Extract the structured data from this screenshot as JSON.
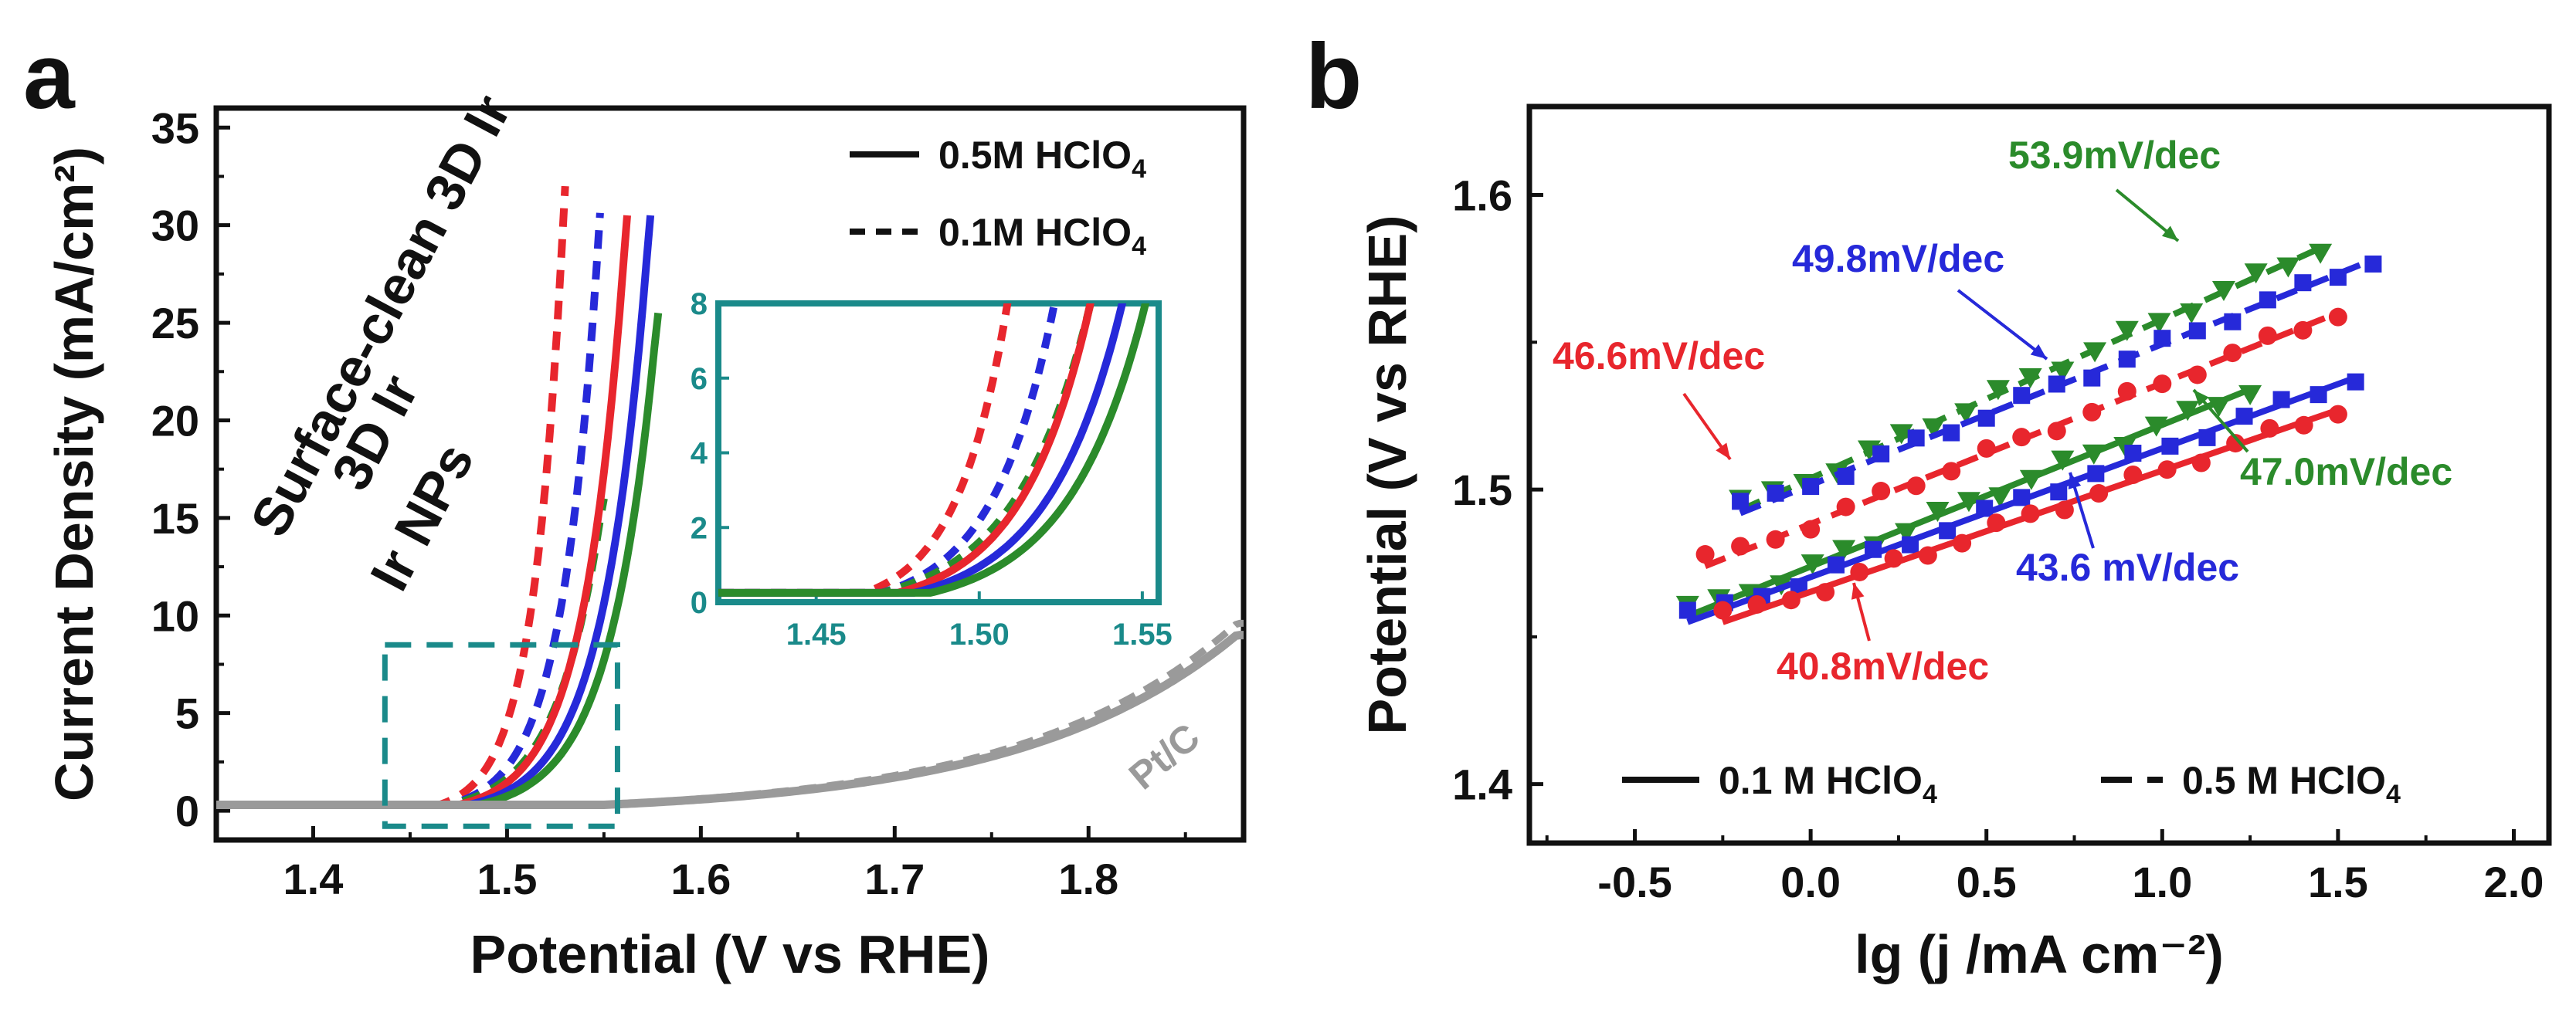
{
  "chart_data": [
    {
      "panel": "a",
      "type": "line",
      "title": "",
      "xlabel": "Potential (V vs RHE)",
      "ylabel": "Current Density (mA/cm²)",
      "xlim": [
        1.35,
        1.88
      ],
      "ylim": [
        -1.5,
        36
      ],
      "xticks": [
        1.4,
        1.5,
        1.6,
        1.7,
        1.8
      ],
      "yticks": [
        0,
        5,
        10,
        15,
        20,
        25,
        30,
        35
      ],
      "legend": [
        {
          "label": "0.5M HClO",
          "sub": "4",
          "style": "solid"
        },
        {
          "label": "0.1M HClO",
          "sub": "4",
          "style": "dashed"
        }
      ],
      "series": [
        {
          "name": "Surface-clean 3D Ir",
          "electrolyte": "0.1M HClO4",
          "style": "dashed",
          "color": "#e8262d",
          "onset": 1.465,
          "end_x": 1.53,
          "end_y": 32
        },
        {
          "name": "3D Ir",
          "electrolyte": "0.1M HClO4",
          "style": "dashed",
          "color": "#2629d9",
          "onset": 1.47,
          "end_x": 1.549,
          "end_y": 32
        },
        {
          "name": "Ir NPs",
          "electrolyte": "0.1M HClO4",
          "style": "dashed",
          "color": "#2b8b2b",
          "onset": 1.47,
          "end_x": 1.55,
          "end_y": 16
        },
        {
          "name": "Surface-clean 3D Ir",
          "electrolyte": "0.5M HClO4",
          "style": "solid",
          "color": "#e8262d",
          "onset": 1.475,
          "end_x": 1.562,
          "end_y": 30.5
        },
        {
          "name": "3D Ir",
          "electrolyte": "0.5M HClO4",
          "style": "solid",
          "color": "#2629d9",
          "onset": 1.48,
          "end_x": 1.574,
          "end_y": 30.5
        },
        {
          "name": "Ir NPs",
          "electrolyte": "0.5M HClO4",
          "style": "solid",
          "color": "#2b8b2b",
          "onset": 1.485,
          "end_x": 1.578,
          "end_y": 25.5
        },
        {
          "name": "Pt/C",
          "electrolyte": "both",
          "style": "solid+dashed",
          "color": "#9a9a9a",
          "onset": 1.55,
          "end_x": 1.88,
          "end_y": 9
        }
      ],
      "curve_labels": [
        {
          "text": "Surface-clean 3D Ir",
          "color": "#e8262d"
        },
        {
          "text": "3D Ir",
          "color": "#2629d9"
        },
        {
          "text": "Ir NPs",
          "color": "#2b8b2b"
        },
        {
          "text": "Pt/C",
          "color": "#9a9a9a"
        }
      ],
      "inset": {
        "xlim": [
          1.42,
          1.555
        ],
        "ylim": [
          0,
          8
        ],
        "xticks": [
          1.45,
          1.5,
          1.55
        ],
        "yticks": [
          0,
          2,
          4,
          6,
          8
        ],
        "color": "#1a8a8a"
      }
    },
    {
      "panel": "b",
      "type": "scatter",
      "title": "",
      "xlabel": "lg (j /mA cm⁻²)",
      "ylabel": "Potential (V vs RHE)",
      "xlim": [
        -0.8,
        2.1
      ],
      "ylim": [
        1.38,
        1.63
      ],
      "xticks": [
        -0.5,
        0.0,
        0.5,
        1.0,
        1.5,
        2.0
      ],
      "yticks": [
        1.4,
        1.5,
        1.6
      ],
      "legend": [
        {
          "label": "0.1 M HClO",
          "sub": "4",
          "style": "solid"
        },
        {
          "label": "0.5 M HClO",
          "sub": "4",
          "style": "dashed"
        }
      ],
      "series": [
        {
          "name": "Ir NPs 0.5M",
          "style": "dashed",
          "marker": "triangle-down",
          "color": "#2b8b2b",
          "x": [
            -0.2,
            1.45
          ],
          "y": [
            1.493,
            1.582
          ],
          "tafel": "53.9mV/dec"
        },
        {
          "name": "3D Ir 0.5M",
          "style": "dashed",
          "marker": "square",
          "color": "#2629d9",
          "x": [
            -0.2,
            1.6
          ],
          "y": [
            1.492,
            1.578
          ],
          "tafel": "49.8mV/dec"
        },
        {
          "name": "Surface-clean 3D Ir 0.5M",
          "style": "dashed",
          "marker": "circle",
          "color": "#e8262d",
          "x": [
            -0.3,
            1.5
          ],
          "y": [
            1.474,
            1.56
          ],
          "tafel": "46.6mV/dec"
        },
        {
          "name": "Ir NPs 0.1M",
          "style": "solid",
          "marker": "triangle-down",
          "color": "#2b8b2b",
          "x": [
            -0.35,
            1.25
          ],
          "y": [
            1.457,
            1.534
          ],
          "tafel": "47.0mV/dec"
        },
        {
          "name": "3D Ir 0.1M",
          "style": "solid",
          "marker": "square",
          "color": "#2629d9",
          "x": [
            -0.35,
            1.55
          ],
          "y": [
            1.455,
            1.538
          ],
          "tafel": "43.6 mV/dec"
        },
        {
          "name": "Surface-clean 3D Ir 0.1M",
          "style": "solid",
          "marker": "circle",
          "color": "#e8262d",
          "x": [
            -0.25,
            1.5
          ],
          "y": [
            1.455,
            1.527
          ],
          "tafel": "40.8mV/dec"
        }
      ],
      "annotations": [
        {
          "text": "53.9mV/dec",
          "color": "#2b8b2b"
        },
        {
          "text": "49.8mV/dec",
          "color": "#2629d9"
        },
        {
          "text": "46.6mV/dec",
          "color": "#e8262d"
        },
        {
          "text": "47.0mV/dec",
          "color": "#2b8b2b"
        },
        {
          "text": "43.6 mV/dec",
          "color": "#2629d9"
        },
        {
          "text": "40.8mV/dec",
          "color": "#e8262d"
        }
      ]
    }
  ],
  "panel_labels": [
    "a",
    "b"
  ]
}
